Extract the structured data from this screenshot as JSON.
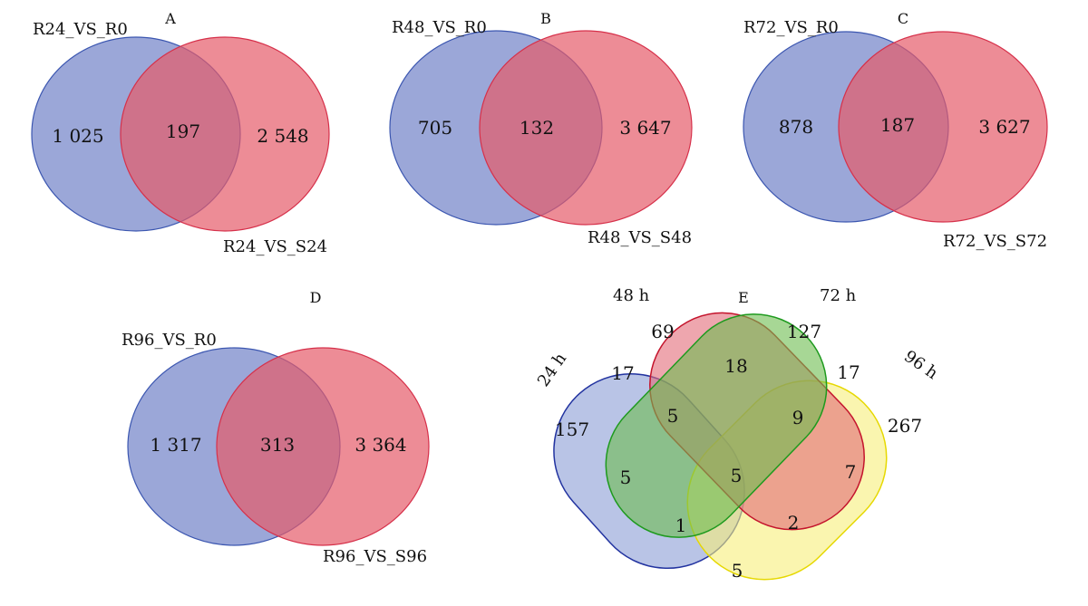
{
  "panels": [
    {
      "letter": "A",
      "left_label": "R24_VS_R0",
      "right_label": "R24_VS_S24",
      "left_only": "1 025",
      "overlap": "197",
      "right_only": "2 548"
    },
    {
      "letter": "B",
      "left_label": "R48_VS_R0",
      "right_label": "R48_VS_S48",
      "left_only": "705",
      "overlap": "132",
      "right_only": "3 647"
    },
    {
      "letter": "C",
      "left_label": "R72_VS_R0",
      "right_label": "R72_VS_S72",
      "left_only": "878",
      "overlap": "187",
      "right_only": "3 627"
    },
    {
      "letter": "D",
      "left_label": "R96_VS_R0",
      "right_label": "R96_VS_S96",
      "left_only": "1 317",
      "overlap": "313",
      "right_only": "3 364"
    }
  ],
  "panel_e": {
    "letter": "E",
    "set_labels": [
      "24 h",
      "48 h",
      "72 h",
      "96 h"
    ],
    "colors": {
      "24h": "#7f93d1",
      "48h": "#e36b78",
      "72h": "#6dbd4e",
      "96h": "#f6ee7a"
    },
    "regions": {
      "only_24": "157",
      "only_48": "69",
      "only_72": "127",
      "only_96": "267",
      "r24_48": "17",
      "r48_72": "18",
      "r72_96": "17",
      "r24_48_72": "5",
      "r48_72_96": "9",
      "r24_72": "5",
      "r48_96": "7",
      "r_all": "5",
      "r24_72_96": "1",
      "r24_48_96": "2",
      "r24_96": "5"
    }
  }
}
